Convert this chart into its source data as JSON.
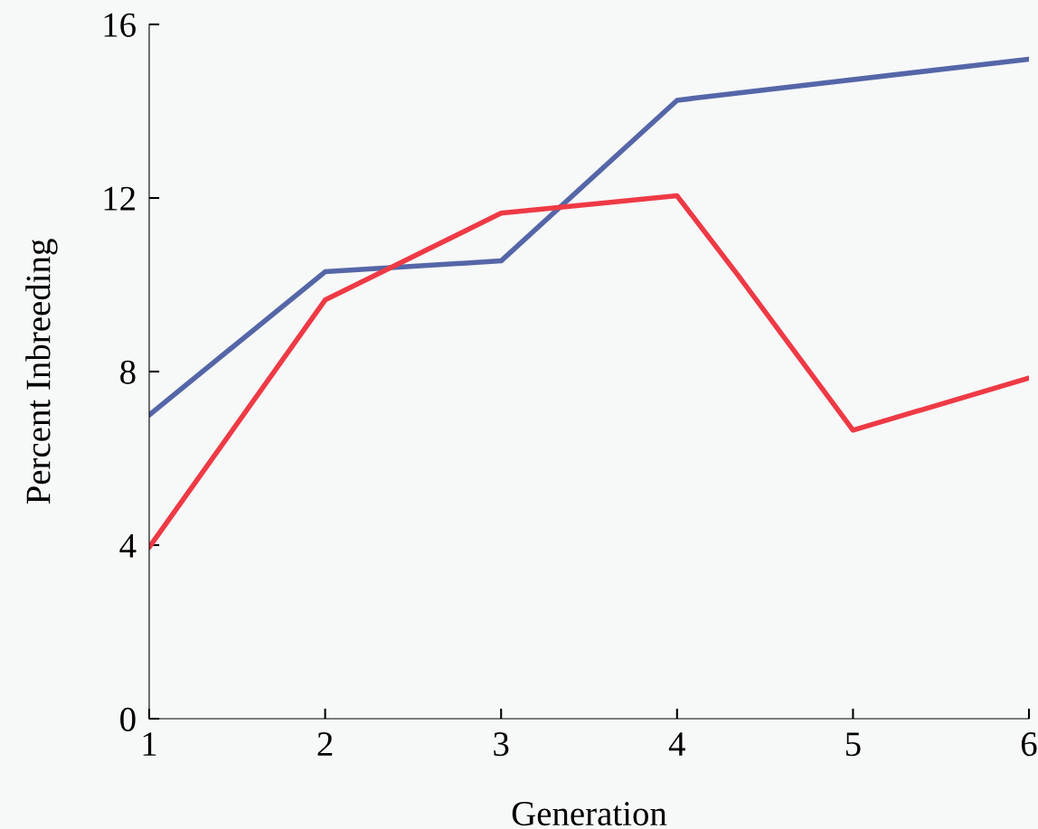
{
  "chart_data": {
    "type": "line",
    "xlabel": "Generation",
    "ylabel": "Percent Inbreeding",
    "xlim": [
      1,
      6
    ],
    "xticks": [
      1,
      2,
      3,
      4,
      5,
      6
    ],
    "ylim": [
      0,
      16
    ],
    "yticks": [
      0,
      4,
      8,
      12,
      16
    ],
    "grid": false,
    "marker": "none",
    "line_style": "solid",
    "series": [
      {
        "color": "#5566a8",
        "x": [
          1,
          2,
          3,
          4,
          4.1,
          6
        ],
        "values": [
          7.0,
          10.3,
          10.55,
          14.25,
          14.3,
          15.2
        ]
      },
      {
        "color": "#ee3a45",
        "x": [
          1,
          2,
          3,
          4,
          4.35,
          5,
          6
        ],
        "values": [
          3.95,
          9.65,
          11.65,
          12.05,
          10.2,
          6.65,
          7.85
        ]
      }
    ]
  }
}
